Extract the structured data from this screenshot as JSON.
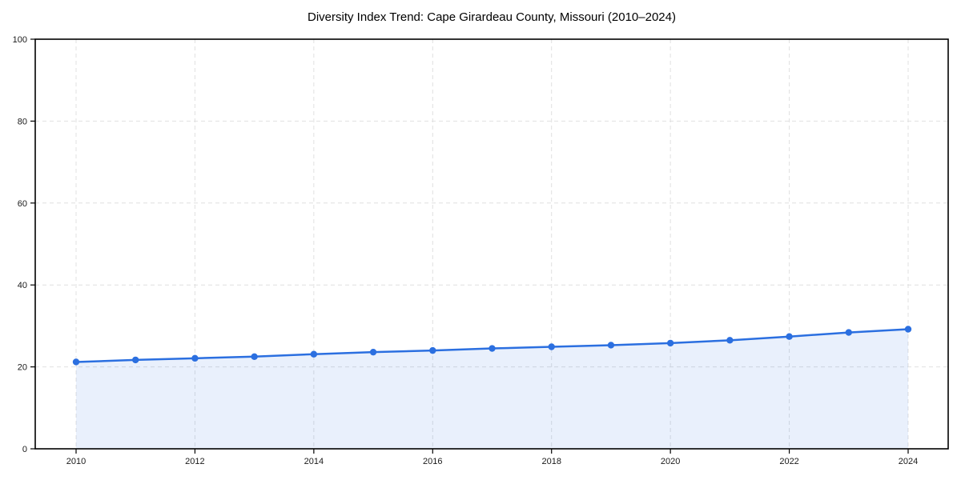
{
  "title": "Diversity Index Trend: Cape Girardeau County, Missouri (2010–2024)",
  "chart_data": {
    "type": "area",
    "title": "Diversity Index Trend: Cape Girardeau County, Missouri (2010–2024)",
    "series_name": "Diversity Index",
    "x": [
      2010,
      2011,
      2012,
      2013,
      2014,
      2015,
      2016,
      2017,
      2018,
      2019,
      2020,
      2021,
      2022,
      2023,
      2024
    ],
    "values": [
      21.2,
      21.7,
      22.1,
      22.5,
      23.1,
      23.6,
      24.0,
      24.5,
      24.9,
      25.3,
      25.8,
      26.5,
      27.4,
      28.4,
      29.2
    ],
    "xlabel": "",
    "ylabel": "",
    "xlim": [
      2010,
      2024
    ],
    "ylim": [
      0,
      100
    ],
    "xticks": [
      2010,
      2012,
      2014,
      2016,
      2018,
      2020,
      2022,
      2024
    ],
    "yticks": [
      0,
      20,
      40,
      60,
      80,
      100
    ],
    "grid": true,
    "grid_style": "dashed",
    "legend": false,
    "marker": "circle",
    "colors": {
      "line": "#2b6fe0",
      "marker": "#2b6fe0",
      "fill": "#2b6fe0",
      "fill_opacity": 0.1,
      "grid": "#e0e0e0",
      "axis_border": "#000000",
      "tick_text": "#1a1a1a",
      "title_text": "#000000",
      "background": "#ffffff"
    }
  }
}
